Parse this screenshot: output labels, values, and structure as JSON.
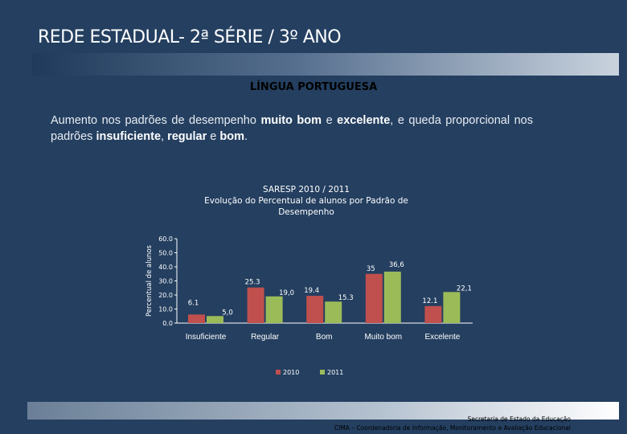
{
  "slide": {
    "title": "REDE ESTADUAL- 2ª SÉRIE / 3º ANO",
    "subject": "LÍNGUA PORTUGUESA",
    "description": {
      "p1": "Aumento nos padrões de desempenho ",
      "b1": "muito bom",
      "p2": " e ",
      "b2": "excelente",
      "p3": ", e queda proporcional nos padrões ",
      "b3": "insuficiente",
      "p4": ", ",
      "b4": "regular",
      "p5": " e ",
      "b5": "bom",
      "p6": "."
    },
    "footer": {
      "line1": "Secretaria de Estado da Educação",
      "line2": "CIMA – Coordenadoria de Informação, Monitoramento e Avaliação Educacional"
    }
  },
  "chart_data": {
    "type": "bar",
    "title": "SARESP 2010 / 2011\nEvolução do Percentual de alunos por Padrão de Desempenho",
    "title_lines": [
      "SARESP 2010 / 2011",
      "Evolução do Percentual de alunos por Padrão de",
      "Desempenho"
    ],
    "ylabel": "Percentual de alunos",
    "xlabel": "",
    "ylim": [
      0,
      60
    ],
    "yticks": [
      0,
      10,
      20,
      30,
      40,
      50,
      60
    ],
    "ytick_labels": [
      "0.0",
      "10.0",
      "20.0",
      "30.0",
      "40.0",
      "50.0",
      "60.0"
    ],
    "categories": [
      "Insuficiente",
      "Regular",
      "Bom",
      "Muito bom",
      "Excelente"
    ],
    "series": [
      {
        "name": "2010",
        "color": "#c0504d",
        "values": [
          6.1,
          25.3,
          19.4,
          35,
          12.1
        ],
        "labels": [
          "6.1",
          "25.3",
          "19.4",
          "35",
          "12.1"
        ]
      },
      {
        "name": "2011",
        "color": "#9bbb59",
        "values": [
          5.0,
          19.0,
          15.3,
          36.6,
          22.1
        ],
        "labels": [
          "5,0",
          "19,0",
          "15.3",
          "36,6",
          "22,1"
        ]
      }
    ],
    "legend_position": "bottom",
    "grid": false
  }
}
